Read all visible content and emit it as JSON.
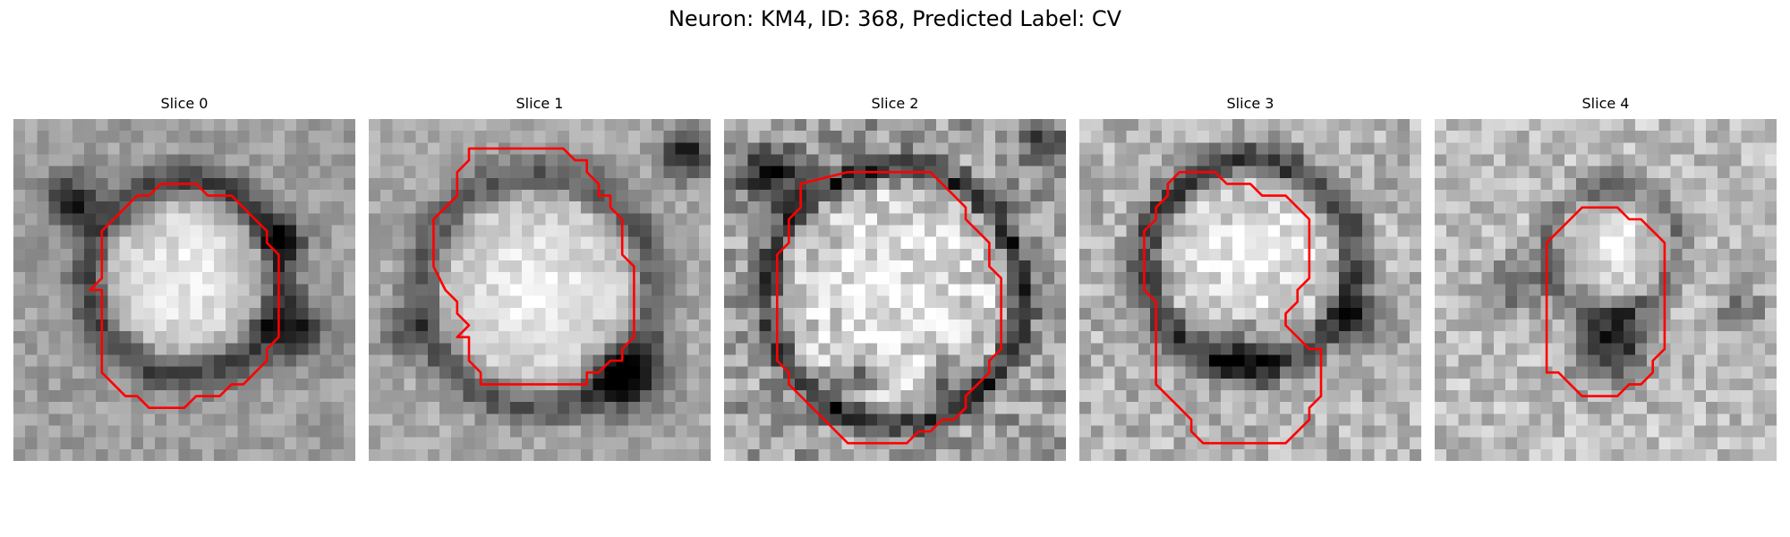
{
  "figure": {
    "title": "Neuron: KM4, ID: 368, Predicted Label: CV",
    "contour_color": "#ff0000"
  },
  "panels": [
    {
      "title": "Slice 0"
    },
    {
      "title": "Slice 1"
    },
    {
      "title": "Slice 2"
    },
    {
      "title": "Slice 3"
    },
    {
      "title": "Slice 4"
    }
  ]
}
